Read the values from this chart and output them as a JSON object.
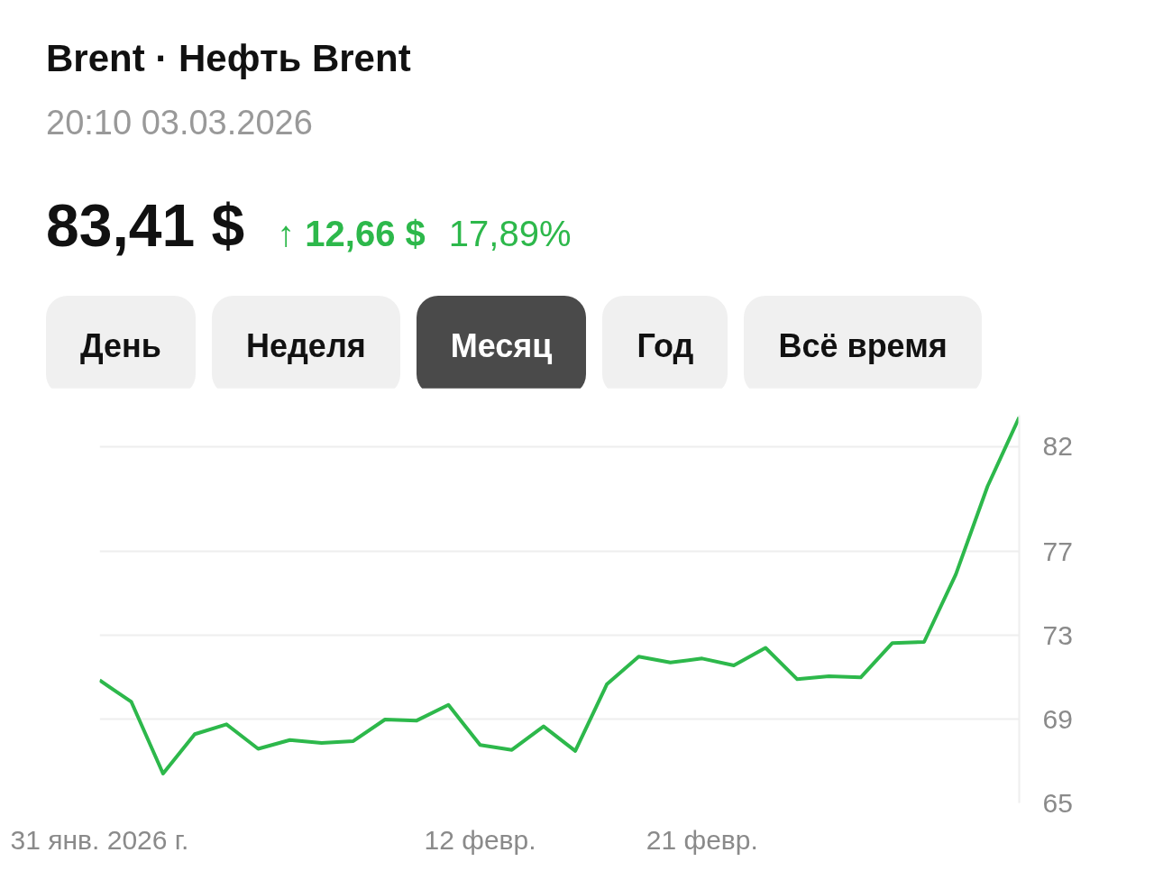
{
  "chart_data": {
    "type": "line",
    "title": "Brent · Нефть Brent",
    "subtitle": "20:10 03.03.2026",
    "annotations": [
      "83,41 $",
      "↑ 12,66 $",
      "17,89%",
      "День",
      "Неделя",
      "Месяц",
      "Год",
      "Всё время"
    ],
    "categories": [
      "31 янв. 2026 г.",
      null,
      null,
      null,
      null,
      null,
      null,
      null,
      null,
      null,
      null,
      null,
      "12 февр.",
      null,
      null,
      null,
      null,
      null,
      null,
      "21 февр.",
      null,
      null,
      null,
      null,
      null,
      null,
      null,
      null,
      null,
      null
    ],
    "series": [
      {
        "color": "#2db84b",
        "values": [
          70.85,
          69.82,
          66.4,
          68.28,
          68.75,
          67.58,
          68.0,
          67.86,
          67.95,
          68.98,
          68.93,
          69.68,
          67.76,
          67.53,
          68.65,
          67.48,
          70.67,
          71.98,
          71.7,
          71.89,
          71.56,
          72.4,
          70.9,
          71.04,
          70.99,
          72.63,
          72.68,
          75.9,
          80.1,
          83.4
        ]
      }
    ],
    "ylim": [
      65,
      83.5
    ],
    "yticks": [
      65,
      69,
      73,
      77,
      82
    ],
    "grid": "y",
    "marker": "none",
    "line_style": "solid"
  }
}
